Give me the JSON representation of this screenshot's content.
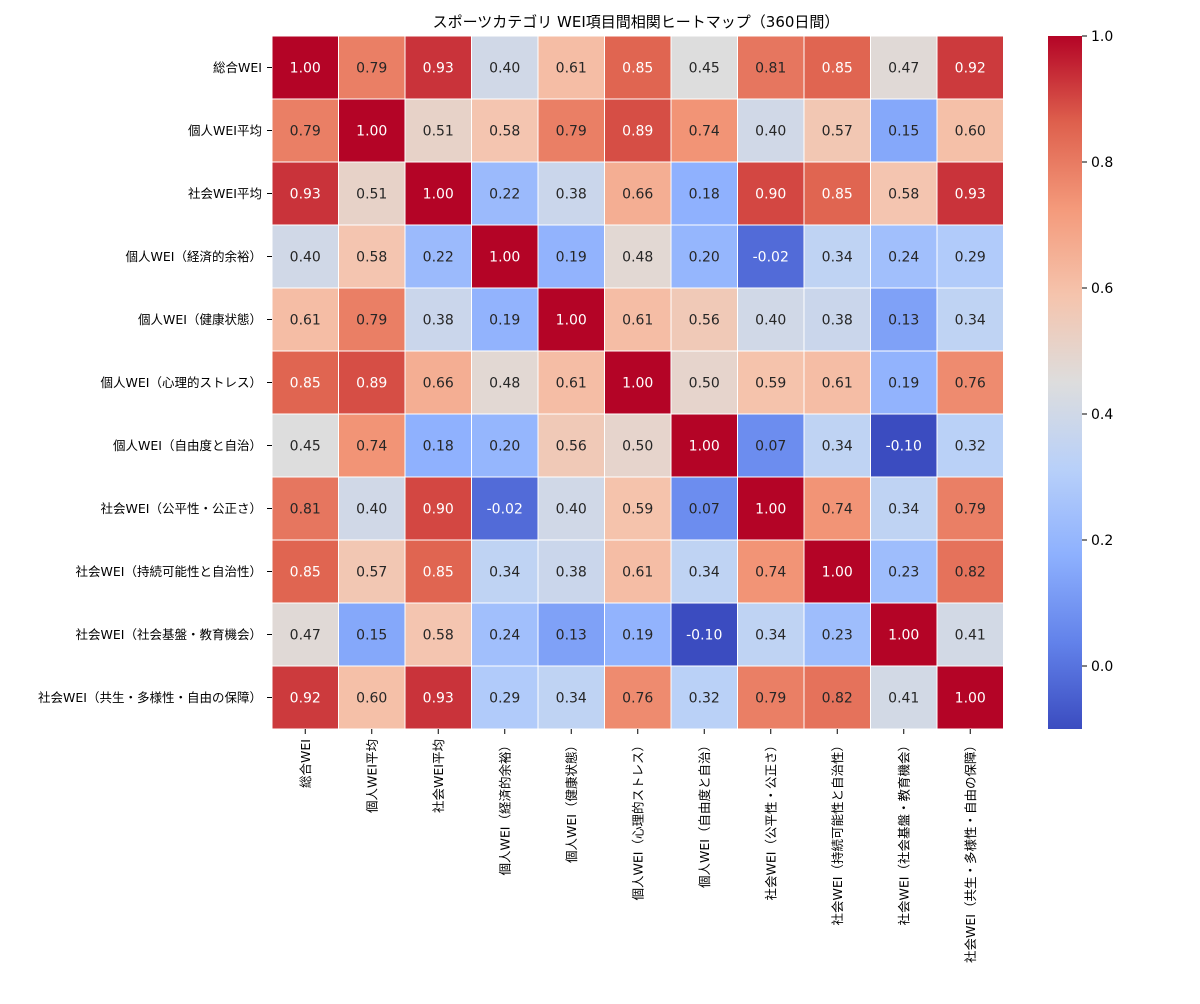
{
  "chart_data": {
    "type": "heatmap",
    "title": "スポーツカテゴリ WEI項目間相関ヒートマップ（360日間）",
    "labels": [
      "総合WEI",
      "個人WEI平均",
      "社会WEI平均",
      "個人WEI（経済的余裕）",
      "個人WEI（健康状態）",
      "個人WEI（心理的ストレス）",
      "個人WEI（自由度と自治）",
      "社会WEI（公平性・公正さ）",
      "社会WEI（持続可能性と自治性）",
      "社会WEI（社会基盤・教育機会）",
      "社会WEI（共生・多様性・自由の保障）"
    ],
    "matrix": [
      [
        1.0,
        0.79,
        0.93,
        0.4,
        0.61,
        0.85,
        0.45,
        0.81,
        0.85,
        0.47,
        0.92
      ],
      [
        0.79,
        1.0,
        0.51,
        0.58,
        0.79,
        0.89,
        0.74,
        0.4,
        0.57,
        0.15,
        0.6
      ],
      [
        0.93,
        0.51,
        1.0,
        0.22,
        0.38,
        0.66,
        0.18,
        0.9,
        0.85,
        0.58,
        0.93
      ],
      [
        0.4,
        0.58,
        0.22,
        1.0,
        0.19,
        0.48,
        0.2,
        -0.02,
        0.34,
        0.24,
        0.29
      ],
      [
        0.61,
        0.79,
        0.38,
        0.19,
        1.0,
        0.61,
        0.56,
        0.4,
        0.38,
        0.13,
        0.34
      ],
      [
        0.85,
        0.89,
        0.66,
        0.48,
        0.61,
        1.0,
        0.5,
        0.59,
        0.61,
        0.19,
        0.76
      ],
      [
        0.45,
        0.74,
        0.18,
        0.2,
        0.56,
        0.5,
        1.0,
        0.07,
        0.34,
        -0.1,
        0.32
      ],
      [
        0.81,
        0.4,
        0.9,
        -0.02,
        0.4,
        0.59,
        0.07,
        1.0,
        0.74,
        0.34,
        0.79
      ],
      [
        0.85,
        0.57,
        0.85,
        0.34,
        0.38,
        0.61,
        0.34,
        0.74,
        1.0,
        0.23,
        0.82
      ],
      [
        0.47,
        0.15,
        0.58,
        0.24,
        0.13,
        0.19,
        -0.1,
        0.34,
        0.23,
        1.0,
        0.41
      ],
      [
        0.92,
        0.6,
        0.93,
        0.29,
        0.34,
        0.76,
        0.32,
        0.79,
        0.82,
        0.41,
        1.0
      ]
    ],
    "colormap": "coolwarm",
    "vmin": -0.1,
    "vmax": 1.0,
    "colorbar_ticks": [
      0.0,
      0.2,
      0.4,
      0.6,
      0.8,
      1.0
    ],
    "colorbar_tick_labels": [
      "0.0",
      "0.2",
      "0.4",
      "0.6",
      "0.8",
      "1.0"
    ],
    "value_format": "0.00"
  },
  "colors": {
    "cool": "#3b4cc0",
    "neutral": "#dddddd",
    "warm": "#b40426",
    "grid_line": "#ffffff",
    "text_dark": "#262626",
    "text_light": "#ffffff"
  }
}
